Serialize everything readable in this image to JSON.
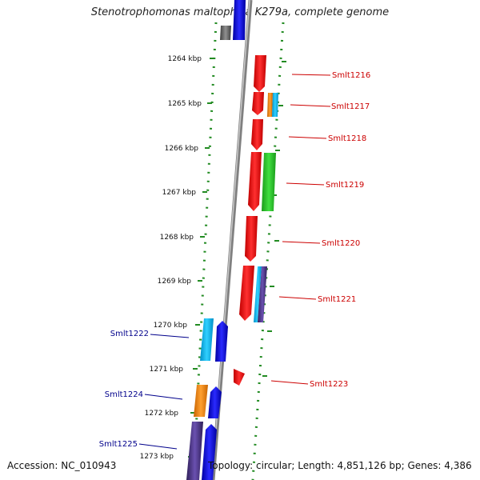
{
  "title": "Stenotrophomonas maltophilia K279a, complete genome",
  "footer": {
    "accession": "Accession: NC_010943",
    "topology": "Topology: circular; Length: 4,851,126 bp; Genes: 4,386"
  },
  "kbp_labels": [
    "1264 kbp",
    "1265 kbp",
    "1266 kbp",
    "1267 kbp",
    "1268 kbp",
    "1269 kbp",
    "1270 kbp",
    "1271 kbp",
    "1272 kbp",
    "1273 kbp"
  ],
  "gene_labels": {
    "right": [
      "Smlt1216",
      "Smlt1217",
      "Smlt1218",
      "Smlt1219",
      "Smlt1220",
      "Smlt1221",
      "Smlt1223"
    ],
    "left": [
      "Smlt1222",
      "Smlt1224",
      "Smlt1225"
    ]
  },
  "colors": {
    "forward_label": "#cc0000",
    "reverse_label": "#00008b",
    "forward_gene": "#ff0000",
    "reverse_gene": "#0000ff",
    "tick": "#228b22",
    "backbone": "#808080"
  }
}
